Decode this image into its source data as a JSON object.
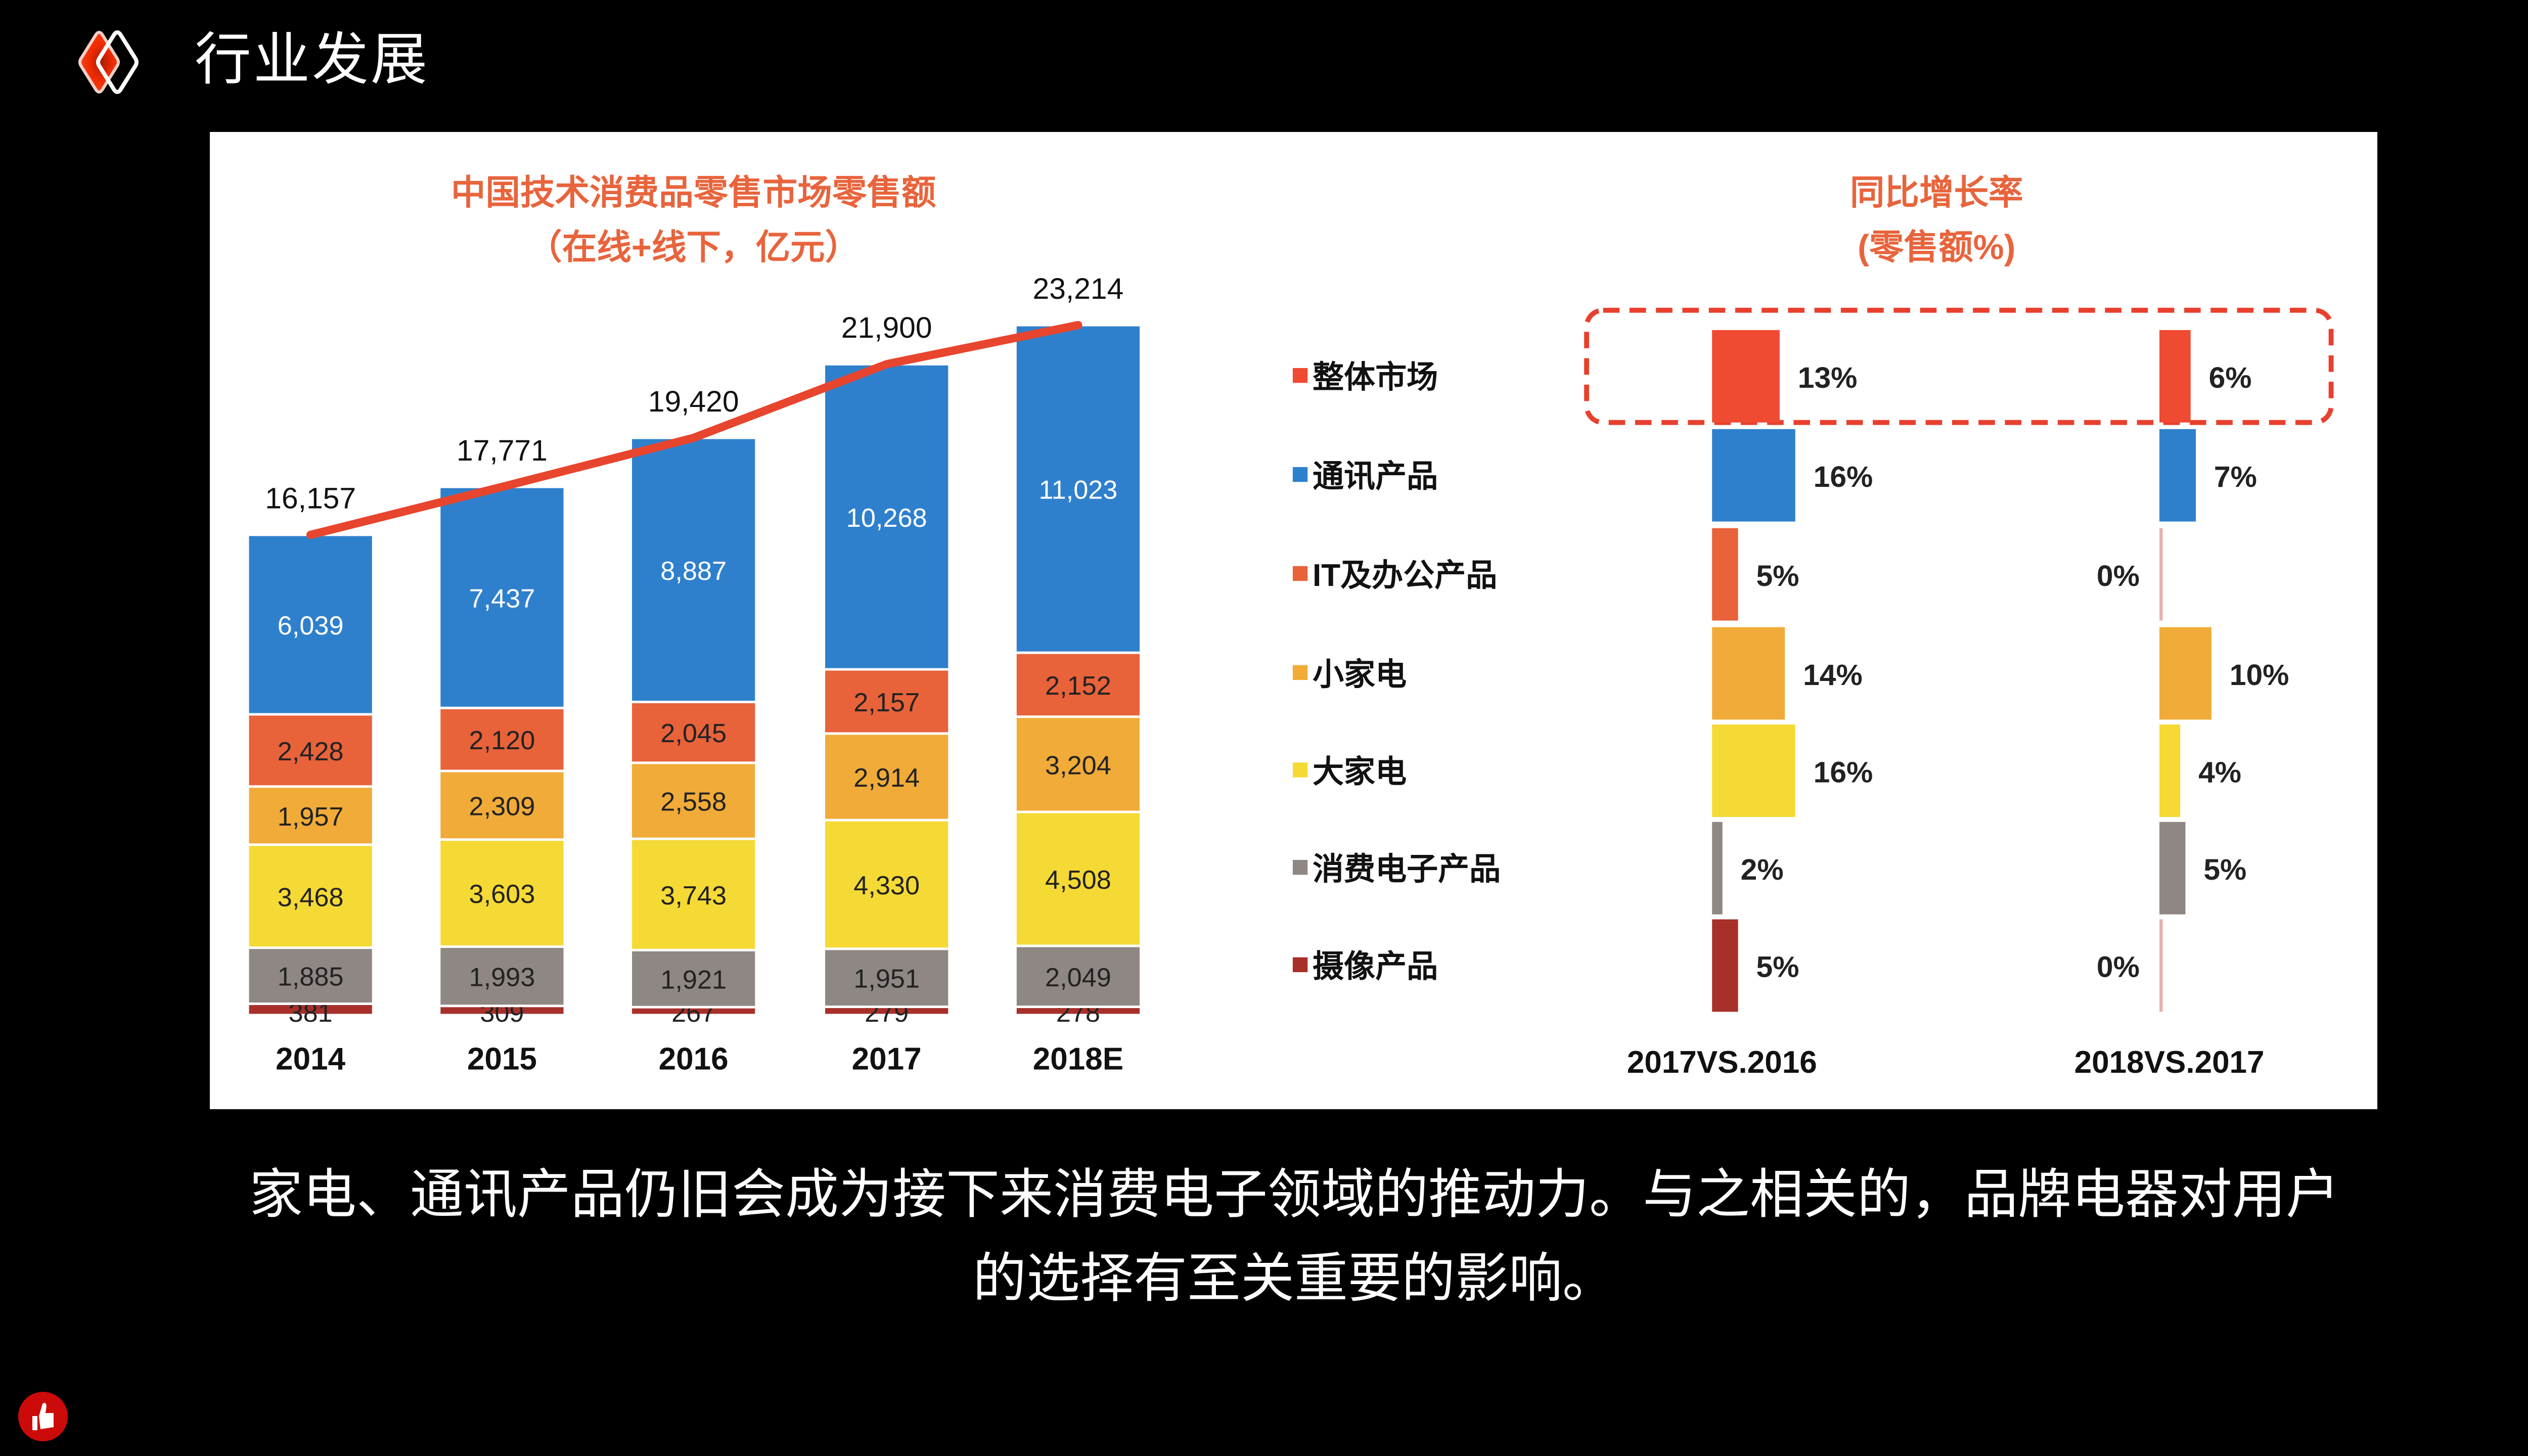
{
  "header": {
    "title": "行业发展",
    "logo_icon": "double-diamond-logo-icon"
  },
  "caption": "家电、通讯产品仍旧会成为接下来消费电子领域的推动力。与之相关的，品牌电器对用户的选择有至关重要的影响。",
  "like_icon": "thumbs-up-icon",
  "chart_data": [
    {
      "type": "bar",
      "stacked": true,
      "title": "中国技术消费品零售市场零售额",
      "subtitle": "（在线+线下，亿元）",
      "categories": [
        "2014",
        "2015",
        "2016",
        "2017",
        "2018E"
      ],
      "series": [
        {
          "name": "摄像产品",
          "color": "#a8302a",
          "values": [
            381,
            309,
            267,
            279,
            278
          ]
        },
        {
          "name": "消费电子产品",
          "color": "#8f8783",
          "values": [
            1885,
            1993,
            1921,
            1951,
            2049
          ]
        },
        {
          "name": "大家电",
          "color": "#f5d935",
          "values": [
            3468,
            3603,
            3743,
            4330,
            4508
          ]
        },
        {
          "name": "小家电",
          "color": "#f0ab38",
          "values": [
            1957,
            2309,
            2558,
            2914,
            3204
          ]
        },
        {
          "name": "IT及办公产品",
          "color": "#e8623a",
          "values": [
            2428,
            2120,
            2045,
            2157,
            2152
          ]
        },
        {
          "name": "通讯产品",
          "color": "#2f80cc",
          "values": [
            6039,
            7437,
            8887,
            10268,
            11023
          ]
        }
      ],
      "totals": [
        16157,
        17771,
        19420,
        21900,
        23214
      ],
      "total_line_color": "#e8452e",
      "title_color": "#e8643c"
    },
    {
      "type": "bar",
      "orientation": "horizontal",
      "title": "同比增长率",
      "subtitle": "(零售额%)",
      "categories": [
        "整体市场",
        "通讯产品",
        "IT及办公产品",
        "小家电",
        "大家电",
        "消费电子产品",
        "摄像产品"
      ],
      "colors": [
        "#ef4a32",
        "#2f80cc",
        "#e8623a",
        "#f0ab38",
        "#f5d935",
        "#8f8783",
        "#a8302a"
      ],
      "series": [
        {
          "name": "2017VS.2016",
          "values": [
            13,
            16,
            5,
            14,
            16,
            2,
            5
          ]
        },
        {
          "name": "2018VS.2017",
          "values": [
            6,
            7,
            0,
            10,
            4,
            5,
            0
          ]
        }
      ],
      "highlight": "整体市场",
      "title_color": "#e8643c"
    }
  ]
}
